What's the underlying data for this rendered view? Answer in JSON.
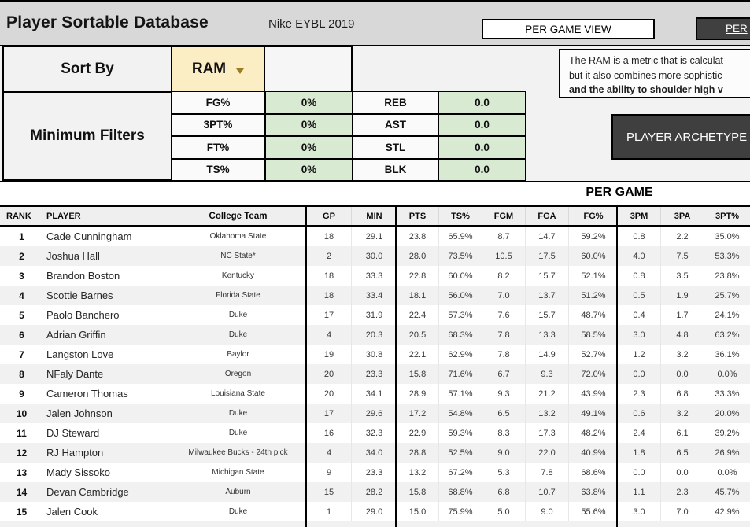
{
  "topbar": {
    "title": "Player Sortable Database",
    "subtitle": "Nike EYBL 2019",
    "per_game_view_button": "PER GAME VIEW",
    "per_view_button_partial": "PER"
  },
  "sort_by": {
    "label": "Sort By",
    "value": "RAM"
  },
  "minimum_filters": {
    "label": "Minimum Filters",
    "rows": [
      {
        "stat1": "FG%",
        "min1": "0%",
        "stat2": "REB",
        "min2": "0.0"
      },
      {
        "stat1": "3PT%",
        "min1": "0%",
        "stat2": "AST",
        "min2": "0.0"
      },
      {
        "stat1": "FT%",
        "min1": "0%",
        "stat2": "STL",
        "min2": "0.0"
      },
      {
        "stat1": "TS%",
        "min1": "0%",
        "stat2": "BLK",
        "min2": "0.0"
      }
    ]
  },
  "ram_info": {
    "line1": "The RAM is a metric that is calculat",
    "line2": "but it also combines more sophistic",
    "line3": "and the ability to shoulder high v"
  },
  "archetype_button": "PLAYER ARCHETYPE",
  "table": {
    "section_title": "PER GAME",
    "columns": [
      "RANK",
      "PLAYER",
      "College Team",
      "GP",
      "MIN",
      "PTS",
      "TS%",
      "FGM",
      "FGA",
      "FG%",
      "3PM",
      "3PA",
      "3PT%"
    ],
    "rows": [
      [
        "1",
        "Cade Cunningham",
        "Oklahoma State",
        "18",
        "29.1",
        "23.8",
        "65.9%",
        "8.7",
        "14.7",
        "59.2%",
        "0.8",
        "2.2",
        "35.0%"
      ],
      [
        "2",
        "Joshua Hall",
        "NC State*",
        "2",
        "30.0",
        "28.0",
        "73.5%",
        "10.5",
        "17.5",
        "60.0%",
        "4.0",
        "7.5",
        "53.3%"
      ],
      [
        "3",
        "Brandon Boston",
        "Kentucky",
        "18",
        "33.3",
        "22.8",
        "60.0%",
        "8.2",
        "15.7",
        "52.1%",
        "0.8",
        "3.5",
        "23.8%"
      ],
      [
        "4",
        "Scottie Barnes",
        "Florida State",
        "18",
        "33.4",
        "18.1",
        "56.0%",
        "7.0",
        "13.7",
        "51.2%",
        "0.5",
        "1.9",
        "25.7%"
      ],
      [
        "5",
        "Paolo Banchero",
        "Duke",
        "17",
        "31.9",
        "22.4",
        "57.3%",
        "7.6",
        "15.7",
        "48.7%",
        "0.4",
        "1.7",
        "24.1%"
      ],
      [
        "6",
        "Adrian Griffin",
        "Duke",
        "4",
        "20.3",
        "20.5",
        "68.3%",
        "7.8",
        "13.3",
        "58.5%",
        "3.0",
        "4.8",
        "63.2%"
      ],
      [
        "7",
        "Langston Love",
        "Baylor",
        "19",
        "30.8",
        "22.1",
        "62.9%",
        "7.8",
        "14.9",
        "52.7%",
        "1.2",
        "3.2",
        "36.1%"
      ],
      [
        "8",
        "NFaly Dante",
        "Oregon",
        "20",
        "23.3",
        "15.8",
        "71.6%",
        "6.7",
        "9.3",
        "72.0%",
        "0.0",
        "0.0",
        "0.0%"
      ],
      [
        "9",
        "Cameron Thomas",
        "Louisiana State",
        "20",
        "34.1",
        "28.9",
        "57.1%",
        "9.3",
        "21.2",
        "43.9%",
        "2.3",
        "6.8",
        "33.3%"
      ],
      [
        "10",
        "Jalen Johnson",
        "Duke",
        "17",
        "29.6",
        "17.2",
        "54.8%",
        "6.5",
        "13.2",
        "49.1%",
        "0.6",
        "3.2",
        "20.0%"
      ],
      [
        "11",
        "DJ Steward",
        "Duke",
        "16",
        "32.3",
        "22.9",
        "59.3%",
        "8.3",
        "17.3",
        "48.2%",
        "2.4",
        "6.1",
        "39.2%"
      ],
      [
        "12",
        "RJ Hampton",
        "Milwaukee Bucks - 24th pick",
        "4",
        "34.0",
        "28.8",
        "52.5%",
        "9.0",
        "22.0",
        "40.9%",
        "1.8",
        "6.5",
        "26.9%"
      ],
      [
        "13",
        "Mady Sissoko",
        "Michigan State",
        "9",
        "23.3",
        "13.2",
        "67.2%",
        "5.3",
        "7.8",
        "68.6%",
        "0.0",
        "0.0",
        "0.0%"
      ],
      [
        "14",
        "Devan Cambridge",
        "Auburn",
        "15",
        "28.2",
        "15.8",
        "68.8%",
        "6.8",
        "10.7",
        "63.8%",
        "1.1",
        "2.3",
        "45.7%"
      ],
      [
        "15",
        "Jalen Cook",
        "Duke",
        "1",
        "29.0",
        "15.0",
        "75.9%",
        "5.0",
        "9.0",
        "55.6%",
        "3.0",
        "7.0",
        "42.9%"
      ]
    ]
  },
  "colors": {
    "topbar_bg": "#d8d8d8",
    "dropdown_fill": "#fbeec5",
    "dropdown_caret": "#9c7c20",
    "filter_value_fill": "#d9ead3",
    "dark_button_bg": "#404040",
    "row_alt_bg": "#f1f1f1"
  }
}
